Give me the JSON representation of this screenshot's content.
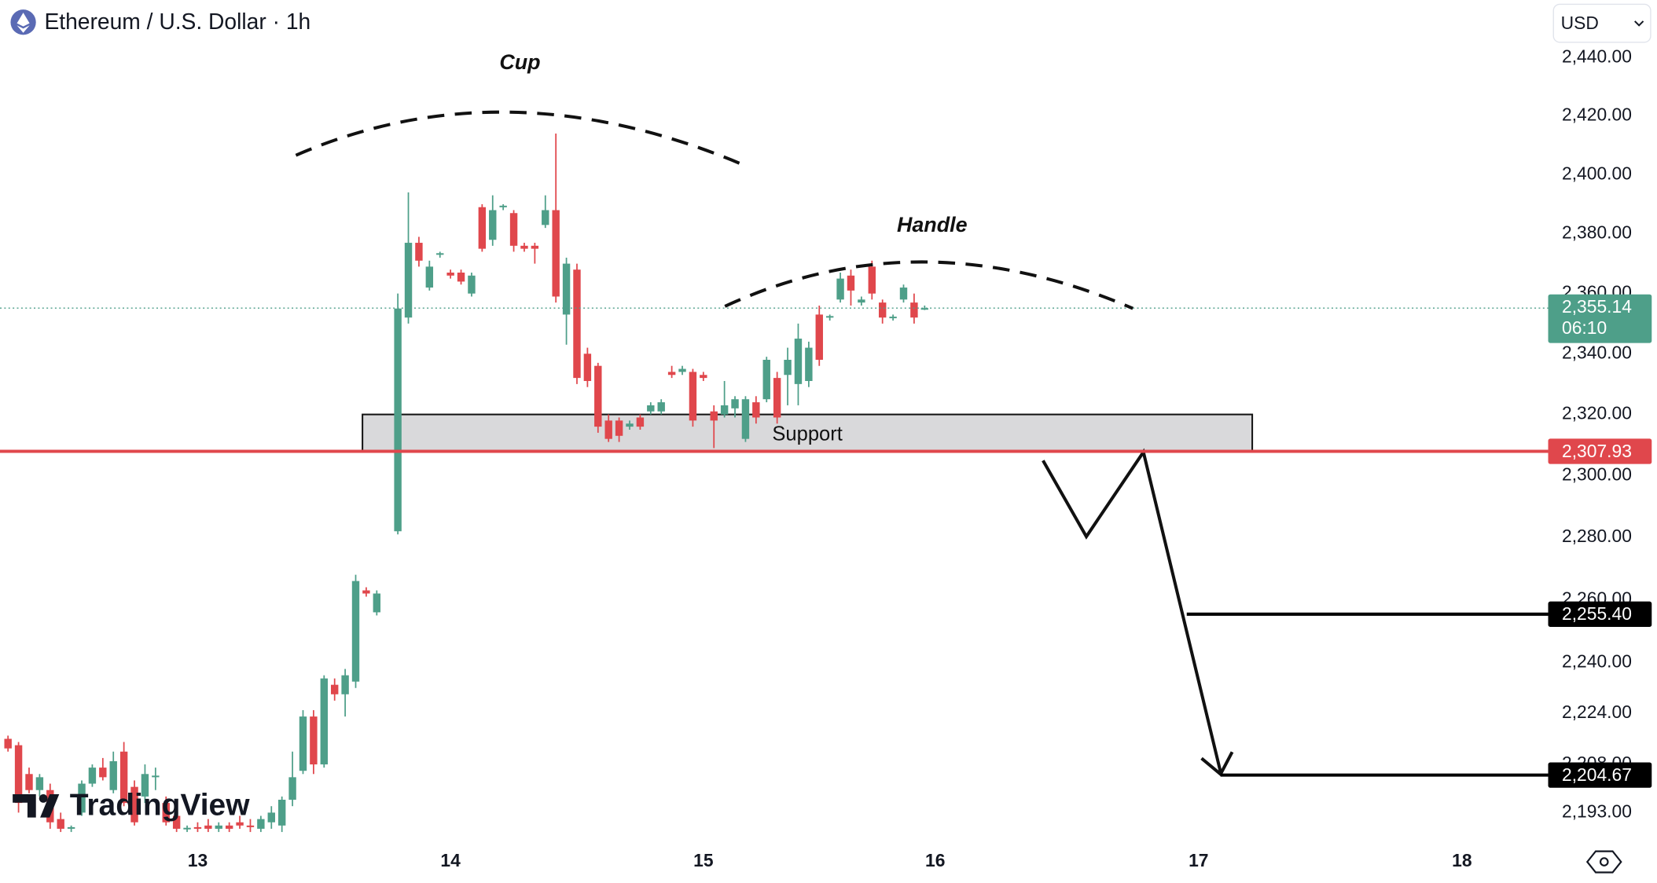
{
  "header": {
    "title": "Ethereum / U.S. Dollar · 1h",
    "currency": "USD"
  },
  "watermark": "TradingView",
  "chart_data": {
    "type": "candlestick",
    "log": true,
    "up_color": "#4e9f89",
    "down_color": "#e0474c",
    "x": [
      -18,
      -17,
      -16,
      -15,
      -14,
      -13,
      -12,
      -11,
      -10,
      -9,
      -8,
      -7,
      -6,
      -5,
      -4,
      -3,
      -2,
      -1,
      0,
      1,
      2,
      3,
      4,
      5,
      6,
      7,
      8,
      9,
      10,
      11,
      12,
      13,
      14,
      15,
      16,
      17,
      19,
      20,
      21,
      22,
      23,
      24,
      25,
      26,
      27,
      28,
      29,
      30,
      31,
      32,
      33,
      34,
      35,
      36,
      37,
      38,
      39,
      40,
      41,
      42,
      43,
      44,
      45,
      46,
      47,
      48,
      49,
      50,
      51,
      52,
      53,
      54,
      55,
      56,
      57,
      58,
      59,
      60,
      61,
      62,
      63,
      64,
      65,
      66,
      67,
      68,
      69
    ],
    "open": [
      2216,
      2214,
      2205,
      2200,
      2200,
      2191,
      2188,
      2193,
      2202,
      2207,
      2200,
      2212,
      2201,
      2198,
      2204,
      2196,
      2192,
      2188,
      2188.5,
      2189,
      2188,
      2189,
      2190,
      2189,
      2188,
      2190,
      2189,
      2197,
      2206,
      2223,
      2208,
      2233,
      2230,
      2234,
      2263,
      2256,
      2282,
      2352,
      2377,
      2362,
      2373,
      2367,
      2367,
      2360,
      2389,
      2378,
      2389,
      2387,
      2376,
      2376,
      2383,
      2388,
      2353,
      2368,
      2340,
      2336,
      2318,
      2318,
      2316,
      2319,
      2321,
      2321,
      2334,
      2334,
      2334,
      2333,
      2321,
      2320,
      2322,
      2312,
      2324,
      2325,
      2332,
      2333,
      2330,
      2331,
      2353,
      2352,
      2358,
      2366,
      2357,
      2369,
      2357,
      2352,
      2358,
      2357,
      2355
    ],
    "high": [
      2217,
      2215,
      2207,
      2205,
      2202,
      2193,
      2189,
      2203,
      2208,
      2210,
      2212,
      2215,
      2203,
      2208,
      2207,
      2198,
      2193,
      2189,
      2190,
      2191,
      2190,
      2190,
      2192,
      2191,
      2192,
      2195,
      2198,
      2212,
      2225,
      2225,
      2236,
      2235,
      2238,
      2268,
      2264,
      2263,
      2360,
      2394,
      2379,
      2371,
      2374,
      2368,
      2368,
      2367,
      2390,
      2393,
      2390,
      2388,
      2377,
      2377,
      2393,
      2414,
      2372,
      2370,
      2342,
      2337,
      2320,
      2319,
      2318,
      2320,
      2324,
      2325,
      2336,
      2336,
      2335,
      2334,
      2323,
      2331,
      2326,
      2326,
      2326,
      2339,
      2334,
      2342,
      2350,
      2344,
      2356,
      2353,
      2367,
      2368,
      2359,
      2371,
      2358,
      2353,
      2363,
      2360,
      2356
    ],
    "low": [
      2212,
      2193,
      2199,
      2198,
      2188,
      2187,
      2187,
      2192,
      2201,
      2203,
      2199,
      2195,
      2189,
      2196,
      2200,
      2189,
      2187,
      2187,
      2187,
      2187,
      2187,
      2187,
      2188,
      2187,
      2187,
      2188,
      2187,
      2195,
      2205,
      2205,
      2207,
      2228,
      2223,
      2232,
      2261,
      2255,
      2281,
      2350,
      2369,
      2361,
      2372,
      2365,
      2363,
      2359,
      2374,
      2376,
      2388,
      2374,
      2374,
      2370,
      2382,
      2357,
      2343,
      2330,
      2329,
      2314,
      2311,
      2311,
      2315,
      2315,
      2320,
      2320,
      2332,
      2333,
      2316,
      2331,
      2309,
      2319,
      2319,
      2311,
      2317,
      2324,
      2317,
      2323,
      2323,
      2329,
      2336,
      2351,
      2357,
      2356,
      2356,
      2358,
      2350,
      2351,
      2357,
      2350,
      2354.5
    ],
    "close": [
      2213,
      2196,
      2200,
      2204,
      2190,
      2188,
      2188.5,
      2202,
      2207,
      2204,
      2209,
      2196,
      2190,
      2205,
      2204.5,
      2190,
      2188,
      2188.3,
      2188,
      2188,
      2189,
      2188,
      2189,
      2188.5,
      2191,
      2193,
      2197,
      2204,
      2223,
      2208,
      2235,
      2230,
      2236,
      2266,
      2262,
      2262,
      2355,
      2377,
      2371,
      2369,
      2373.5,
      2366,
      2364,
      2366,
      2375,
      2388,
      2389.5,
      2376,
      2375,
      2375,
      2388,
      2359,
      2370,
      2332,
      2331,
      2316,
      2312,
      2313,
      2317,
      2316,
      2323,
      2324,
      2333,
      2335,
      2318,
      2332,
      2318,
      2323,
      2325,
      2325,
      2319,
      2338,
      2319,
      2338,
      2345,
      2342,
      2338,
      2352.5,
      2365,
      2361,
      2358,
      2360,
      2352,
      2352.3,
      2362,
      2352,
      2355.14
    ],
    "xlim": [
      -18.76,
      128.18
    ],
    "xticks": [
      {
        "value": 0,
        "label": "13"
      },
      {
        "value": 24,
        "label": "14"
      },
      {
        "value": 48,
        "label": "15"
      },
      {
        "value": 70,
        "label": "16"
      },
      {
        "value": 95,
        "label": "17"
      },
      {
        "value": 120,
        "label": "18"
      }
    ],
    "ylim": [
      2183,
      2460
    ],
    "yticks": [
      {
        "value": 2440,
        "label": "2,440.00"
      },
      {
        "value": 2420,
        "label": "2,420.00"
      },
      {
        "value": 2400,
        "label": "2,400.00"
      },
      {
        "value": 2380,
        "label": "2,380.00"
      },
      {
        "value": 2360,
        "label": "2,360.00"
      },
      {
        "value": 2340,
        "label": "2,340.00"
      },
      {
        "value": 2320,
        "label": "2,320.00"
      },
      {
        "value": 2300,
        "label": "2,300.00"
      },
      {
        "value": 2280,
        "label": "2,280.00"
      },
      {
        "value": 2260,
        "label": "2,260.00"
      },
      {
        "value": 2240,
        "label": "2,240.00"
      },
      {
        "value": 2224,
        "label": "2,224.00"
      },
      {
        "value": 2208,
        "label": "2,208.00"
      },
      {
        "value": 2193,
        "label": "2,193.00"
      }
    ],
    "annotations": {
      "cup": "Cup",
      "handle": "Handle"
    },
    "support": {
      "label": "Support",
      "range": [
        2307.93,
        2320
      ]
    },
    "levels": {
      "values": [
        2307.93,
        2255.4,
        2204.67
      ],
      "value_labels": [
        "2,307.93",
        "2,255.40",
        "2,204.67"
      ],
      "colors": [
        "#e0474c",
        "#000000",
        "#000000"
      ]
    },
    "last_price": {
      "value": 2355.14,
      "label": "2,355.14",
      "countdown": "06:10"
    }
  }
}
